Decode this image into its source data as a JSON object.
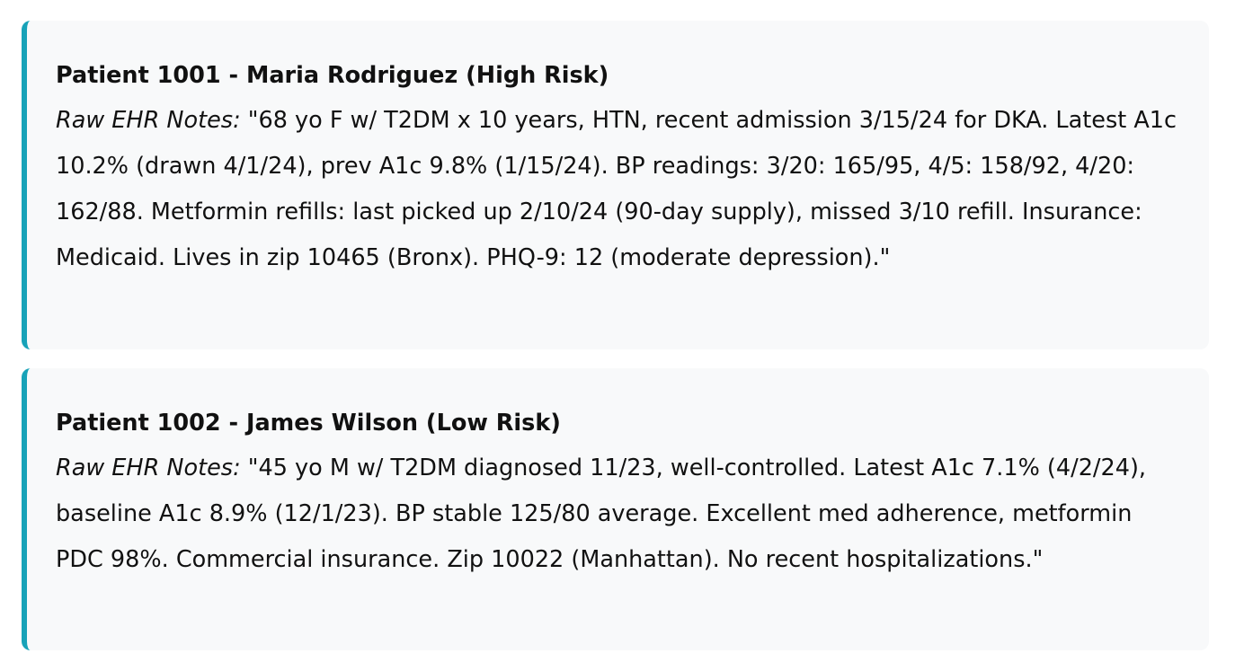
{
  "patients": [
    {
      "title": "Patient 1001 - Maria Rodriguez (High Risk)",
      "notes_label": "Raw EHR Notes:",
      "notes": "\"68 yo F w/ T2DM x 10 years, HTN, recent admission 3/15/24 for DKA. Latest A1c 10.2% (drawn 4/1/24), prev A1c 9.8% (1/15/24). BP readings: 3/20: 165/95, 4/5: 158/92, 4/20: 162/88. Metformin refills: last picked up 2/10/24 (90-day supply), missed 3/10 refill. Insurance: Medicaid. Lives in zip 10465 (Bronx). PHQ-9: 12 (moderate depression).\""
    },
    {
      "title": "Patient 1002 - James Wilson (Low Risk)",
      "notes_label": "Raw EHR Notes:",
      "notes": "\"45 yo M w/ T2DM diagnosed 11/23, well-controlled. Latest A1c 7.1% (4/2/24), baseline A1c 8.9% (12/1/23). BP stable 125/80 average. Excellent med adherence, metformin PDC 98%. Commercial insurance. Zip 10022 (Manhattan). No recent hospitalizations.\""
    }
  ],
  "colors": {
    "accent": "#17a2b8",
    "card_background": "#f8f9fa"
  }
}
